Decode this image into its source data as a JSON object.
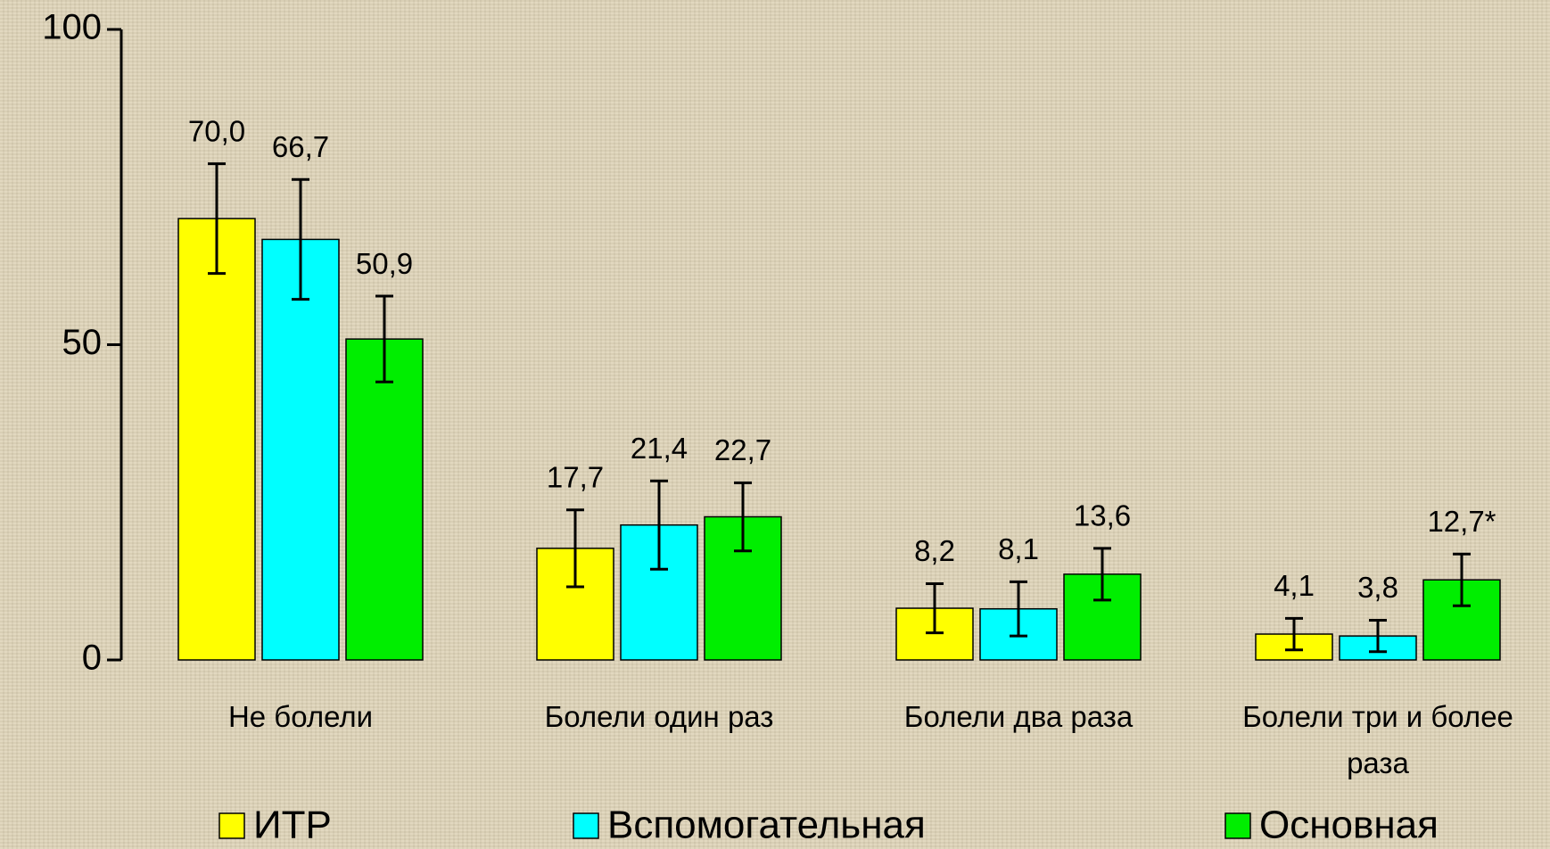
{
  "chart_data": {
    "type": "bar",
    "categories": [
      "Не болели",
      "Болели один раз",
      "Болели два раза",
      "Болели три и более раза"
    ],
    "series": [
      {
        "name": "ИТР",
        "color": "#ffff00",
        "values": [
          70.0,
          17.7,
          8.2,
          4.1
        ],
        "value_labels": [
          "70,0",
          "17,7",
          "8,2",
          "4,1"
        ],
        "errors": [
          8.7,
          6.1,
          3.9,
          2.5
        ]
      },
      {
        "name": "Вспомогательная",
        "color": "#00ffff",
        "values": [
          66.7,
          21.4,
          8.1,
          3.8
        ],
        "value_labels": [
          "66,7",
          "21,4",
          "8,1",
          "3,8"
        ],
        "errors": [
          9.5,
          7.0,
          4.3,
          2.5
        ]
      },
      {
        "name": "Основная",
        "color": "#00ee00",
        "values": [
          50.9,
          22.7,
          13.6,
          12.7
        ],
        "value_labels": [
          "50,9",
          "22,7",
          "13,6",
          "12,7*"
        ],
        "errors": [
          6.8,
          5.4,
          4.1,
          4.1
        ]
      }
    ],
    "ylim": [
      0,
      100
    ],
    "yticks": [
      0,
      50,
      100
    ],
    "grid": false
  }
}
